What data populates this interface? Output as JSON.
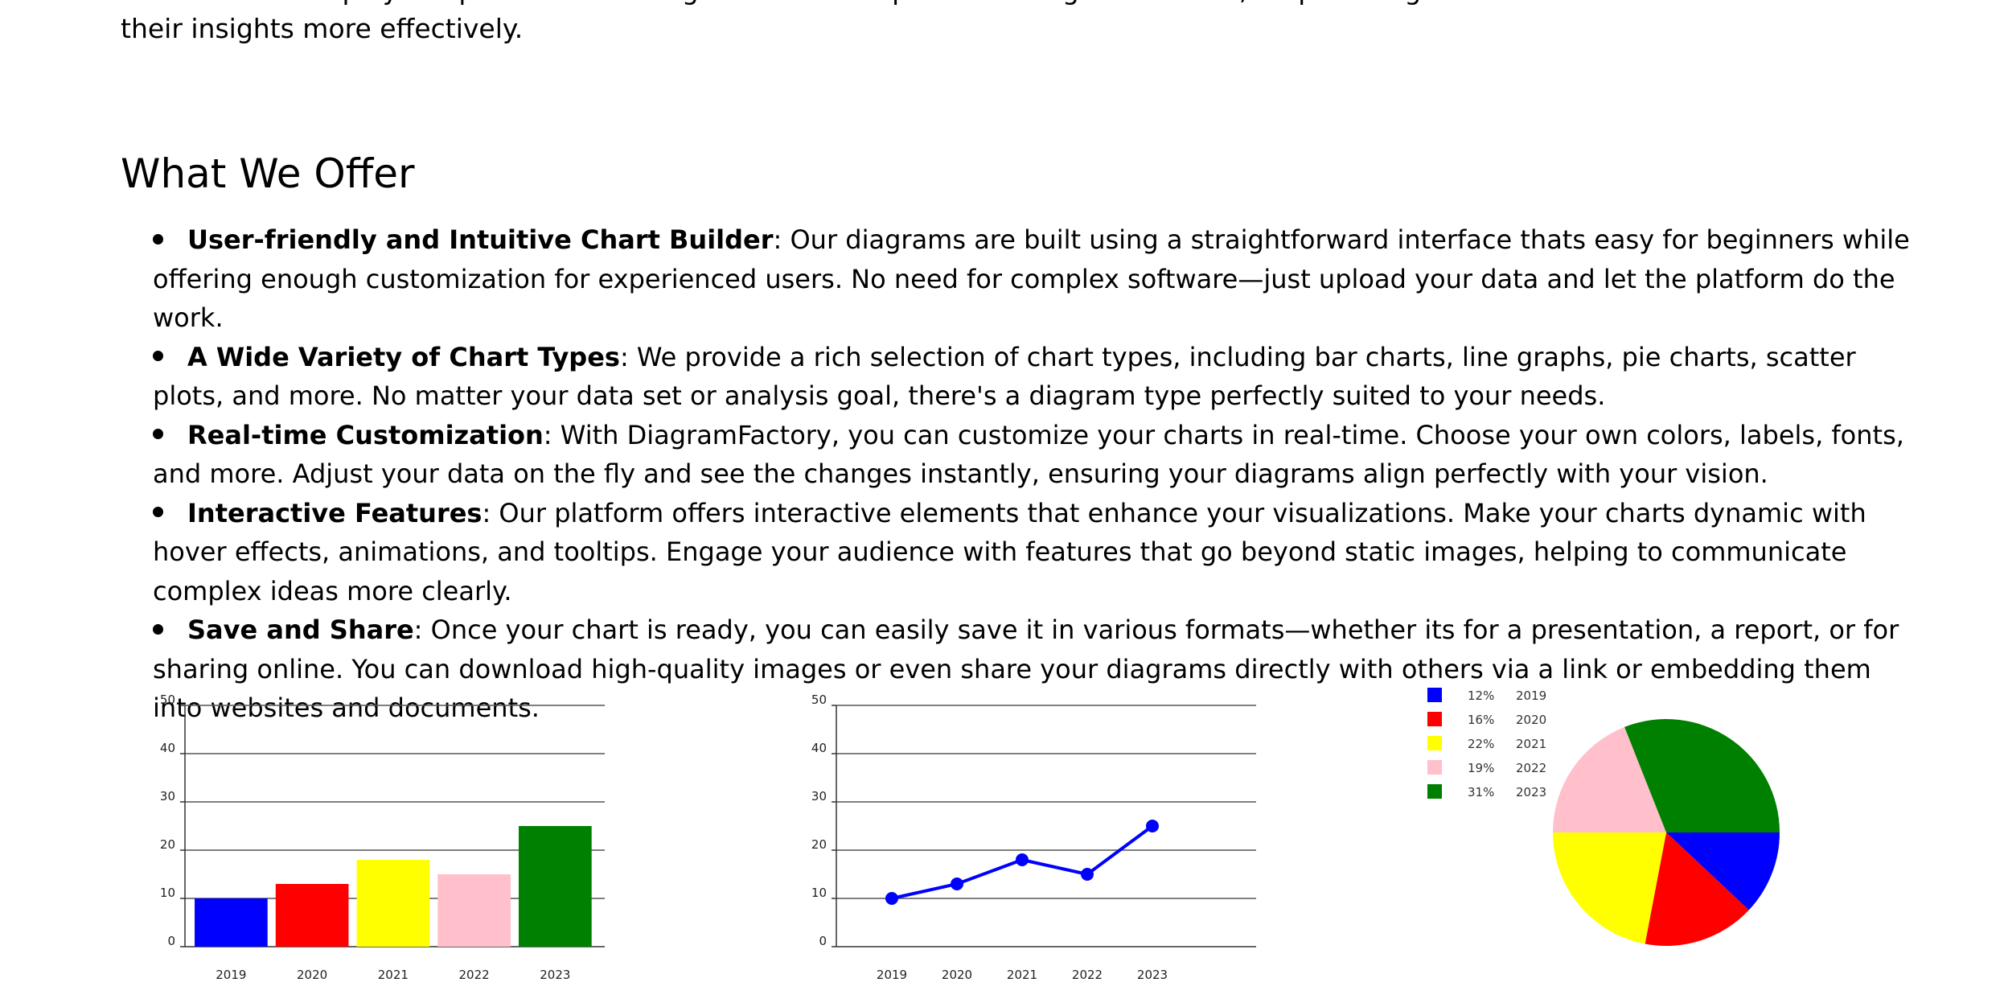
{
  "intro": {
    "text": "mission is to simplify the process of turning raw data into professional-grade visuals, empowering users from all fields to communicate their insights more effectively."
  },
  "section": {
    "title": "What We Offer"
  },
  "offers": [
    {
      "name": "User-friendly and Intuitive Chart Builder",
      "desc": ": Our diagrams are built using a straightforward interface thats easy for beginners while offering enough customization for experienced users. No need for complex software—just upload your data and let the platform do the work."
    },
    {
      "name": "A Wide Variety of Chart Types",
      "desc": ": We provide a rich selection of chart types, including bar charts, line graphs, pie charts, scatter plots, and more. No matter your data set or analysis goal, there's a diagram type perfectly suited to your needs."
    },
    {
      "name": "Real-time Customization",
      "desc": ": With DiagramFactory, you can customize your charts in real-time. Choose your own colors, labels, fonts, and more. Adjust your data on the fly and see the changes instantly, ensuring your diagrams align perfectly with your vision."
    },
    {
      "name": "Interactive Features",
      "desc": ": Our platform offers interactive elements that enhance your visualizations. Make your charts dynamic with hover effects, animations, and tooltips. Engage your audience with features that go beyond static images, helping to communicate complex ideas more clearly."
    },
    {
      "name": "Save and Share",
      "desc": ": Once your chart is ready, you can easily save it in various formats—whether its for a presentation, a report, or for sharing online. You can download high-quality images or even share your diagrams directly with others via a link or embedding them into websites and documents."
    }
  ],
  "chart_data": [
    {
      "type": "bar",
      "categories": [
        "2019",
        "2020",
        "2021",
        "2022",
        "2023"
      ],
      "values": [
        10,
        13,
        18,
        15,
        25
      ],
      "colors": [
        "#0000ff",
        "#ff0000",
        "#ffff00",
        "#ffc0cb",
        "#008000"
      ],
      "ylim": [
        0,
        50
      ],
      "yticks": [
        "0",
        "10",
        "20",
        "30",
        "40",
        "50"
      ],
      "grid": true
    },
    {
      "type": "line",
      "categories": [
        "2019",
        "2020",
        "2021",
        "2022",
        "2023"
      ],
      "values": [
        10,
        13,
        18,
        15,
        25
      ],
      "color": "#0000ff",
      "ylim": [
        0,
        50
      ],
      "yticks": [
        "0",
        "10",
        "20",
        "30",
        "40",
        "50"
      ],
      "grid": true
    },
    {
      "type": "pie",
      "categories": [
        "2019",
        "2020",
        "2021",
        "2022",
        "2023"
      ],
      "values": [
        12,
        16,
        22,
        19,
        31
      ],
      "percent_labels": [
        "12%",
        "16%",
        "22%",
        "19%",
        "31%"
      ],
      "colors": [
        "#0000ff",
        "#ff0000",
        "#ffff00",
        "#ffc0cb",
        "#008000"
      ],
      "legend": "top-left"
    }
  ]
}
